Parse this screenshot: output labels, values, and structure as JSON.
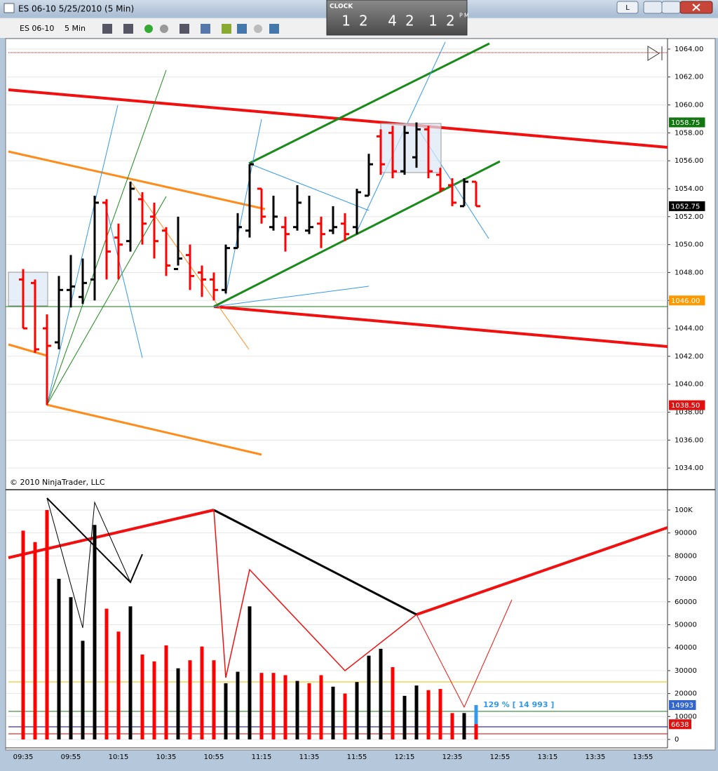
{
  "window": {
    "title": "ES 06-10  5/25/2010 (5 Min)",
    "button": "L"
  },
  "clock": {
    "label": "CLOCK",
    "hours": "12",
    "minutes": "42",
    "seconds": "12",
    "ampm": "PM"
  },
  "toolbar": {
    "instrument": "ES 06-10",
    "interval": "5 Min"
  },
  "chart_data": [
    {
      "type": "ohlc",
      "watermark": "© 2010 NinjaTrader, LLC",
      "up_color": "#000000",
      "down_color": "#ff0000",
      "open": [
        1047.5,
        1047.25,
        1044.0,
        1043.0,
        1046.75,
        1046.25,
        1047.5,
        1053.0,
        1050.5,
        1050.25,
        1053.25,
        1052.0,
        1051.0,
        1048.25,
        1049.25,
        1048.0,
        1047.5,
        1046.75,
        1049.75,
        1051.0,
        1054.0,
        1051.25,
        1051.25,
        1051.25,
        1051.0,
        1051.5,
        1051.0,
        1051.5,
        1051.25,
        1053.5,
        1057.75,
        1058.0,
        1055.25,
        1056.25,
        1058.25,
        1055.0,
        1054.25,
        1052.75,
        1054.5
      ],
      "high": [
        1048.25,
        1047.5,
        1045.0,
        1047.75,
        1049.25,
        1049.0,
        1053.5,
        1053.25,
        1051.5,
        1054.5,
        1053.75,
        1053.0,
        1051.25,
        1052.0,
        1050.0,
        1048.5,
        1048.0,
        1050.0,
        1052.25,
        1055.75,
        1054.0,
        1053.5,
        1052.0,
        1054.25,
        1053.5,
        1052.0,
        1052.75,
        1052.25,
        1054.0,
        1056.5,
        1058.25,
        1058.5,
        1058.5,
        1058.75,
        1058.5,
        1055.5,
        1054.75,
        1054.75,
        1054.5
      ],
      "low": [
        1044.0,
        1042.25,
        1038.5,
        1042.5,
        1045.5,
        1045.75,
        1046.0,
        1047.5,
        1047.5,
        1049.5,
        1050.0,
        1049.0,
        1047.75,
        1048.5,
        1046.75,
        1046.25,
        1046.0,
        1046.5,
        1049.75,
        1050.5,
        1051.5,
        1051.0,
        1049.5,
        1051.0,
        1050.75,
        1049.75,
        1050.75,
        1050.25,
        1050.75,
        1053.5,
        1055.0,
        1054.75,
        1055.0,
        1055.5,
        1054.75,
        1053.75,
        1052.75,
        1052.75,
        1052.75
      ],
      "close": [
        1044.0,
        1042.5,
        1042.75,
        1046.75,
        1047.0,
        1047.25,
        1053.0,
        1049.5,
        1050.0,
        1054.0,
        1051.5,
        1050.25,
        1048.5,
        1049.0,
        1047.75,
        1047.5,
        1046.75,
        1049.75,
        1051.25,
        1055.75,
        1052.0,
        1052.0,
        1050.75,
        1053.0,
        1051.25,
        1050.75,
        1051.25,
        1050.75,
        1053.75,
        1055.75,
        1055.75,
        1055.25,
        1058.0,
        1058.25,
        1055.25,
        1054.0,
        1053.0,
        1054.5,
        1052.75
      ],
      "ylim": [
        1032.5,
        1064.75
      ],
      "yticks": [
        {
          "value": 1034,
          "label": "1034.00"
        },
        {
          "value": 1036,
          "label": "1036.00"
        },
        {
          "value": 1038,
          "label": "1038.00"
        },
        {
          "value": 1040,
          "label": "1040.00"
        },
        {
          "value": 1042,
          "label": "1042.00"
        },
        {
          "value": 1044,
          "label": "1044.00"
        },
        {
          "value": 1046,
          "label": "1046.00"
        },
        {
          "value": 1048,
          "label": "1048.00"
        },
        {
          "value": 1050,
          "label": "1050.00"
        },
        {
          "value": 1052,
          "label": "1052.00"
        },
        {
          "value": 1054,
          "label": "1054.00"
        },
        {
          "value": 1056,
          "label": "1056.00"
        },
        {
          "value": 1058,
          "label": "1058.00"
        },
        {
          "value": 1060,
          "label": "1060.00"
        },
        {
          "value": 1062,
          "label": "1062.00"
        },
        {
          "value": 1064,
          "label": "1064.00"
        }
      ],
      "markers": [
        {
          "value": 1058.75,
          "label": "1058.75",
          "color": "#117711"
        },
        {
          "value": 1052.75,
          "label": "1052.75",
          "color": "#000000"
        },
        {
          "value": 1046.0,
          "label": "1046.00",
          "color": "#ff9900"
        },
        {
          "value": 1038.5,
          "label": "1038.50",
          "color": "#e01010"
        }
      ]
    },
    {
      "type": "bar",
      "categories": [
        "09:35",
        null,
        null,
        null,
        "09:55",
        null,
        null,
        null,
        "10:15",
        null,
        null,
        null,
        "10:35",
        null,
        null,
        null,
        "10:55",
        null,
        null,
        null,
        "11:15",
        null,
        null,
        null,
        "11:35",
        null,
        null,
        null,
        "11:55",
        null,
        null,
        null,
        "12:15",
        null,
        null,
        null,
        "12:35",
        null,
        null,
        null,
        "12:55",
        null,
        null,
        null,
        "13:15",
        null,
        null,
        null,
        "13:35",
        null,
        null,
        null,
        "13:55",
        null
      ],
      "values": [
        91000,
        86000,
        100000,
        70000,
        62000,
        43000,
        93500,
        57000,
        47000,
        58000,
        37000,
        34000,
        41000,
        31000,
        34500,
        40500,
        34500,
        24500,
        29500,
        58000,
        29000,
        29000,
        28000,
        25500,
        24500,
        28000,
        23000,
        20000,
        25000,
        36500,
        39500,
        31500,
        19000,
        23500,
        21500,
        22000,
        11500,
        11500,
        6638,
        null,
        null,
        null,
        null,
        null,
        null,
        null,
        null,
        null,
        null,
        null,
        null,
        null,
        null,
        null
      ],
      "colors": [
        "#ff0000",
        "#ff0000",
        "#ff0000",
        "#000000",
        "#000000",
        "#000000",
        "#000000",
        "#ff0000",
        "#ff0000",
        "#000000",
        "#ff0000",
        "#ff0000",
        "#ff0000",
        "#000000",
        "#ff0000",
        "#ff0000",
        "#ff0000",
        "#000000",
        "#000000",
        "#000000",
        "#ff0000",
        "#ff0000",
        "#ff0000",
        "#000000",
        "#ff0000",
        "#ff0000",
        "#000000",
        "#ff0000",
        "#000000",
        "#000000",
        "#000000",
        "#ff0000",
        "#000000",
        "#000000",
        "#ff0000",
        "#ff0000",
        "#ff0000",
        "#000000",
        "#ff0000",
        null,
        null,
        null,
        null,
        null,
        null,
        null,
        null,
        null,
        null,
        null,
        null,
        null,
        null,
        null
      ],
      "projected": {
        "value": 14993,
        "label": "129 % [ 14 993 ]",
        "color": "#3399ee"
      },
      "ylim": [
        0,
        108250
      ],
      "yticks": [
        0,
        10000,
        20000,
        30000,
        40000,
        50000,
        60000,
        70000,
        80000,
        90000,
        {
          "value": 100000,
          "label": "100K"
        }
      ],
      "markers": [
        {
          "value": 14993,
          "label": "14993",
          "color": "#3366cc"
        },
        {
          "value": 6638,
          "label": "6638",
          "color": "#e01010"
        }
      ]
    }
  ]
}
